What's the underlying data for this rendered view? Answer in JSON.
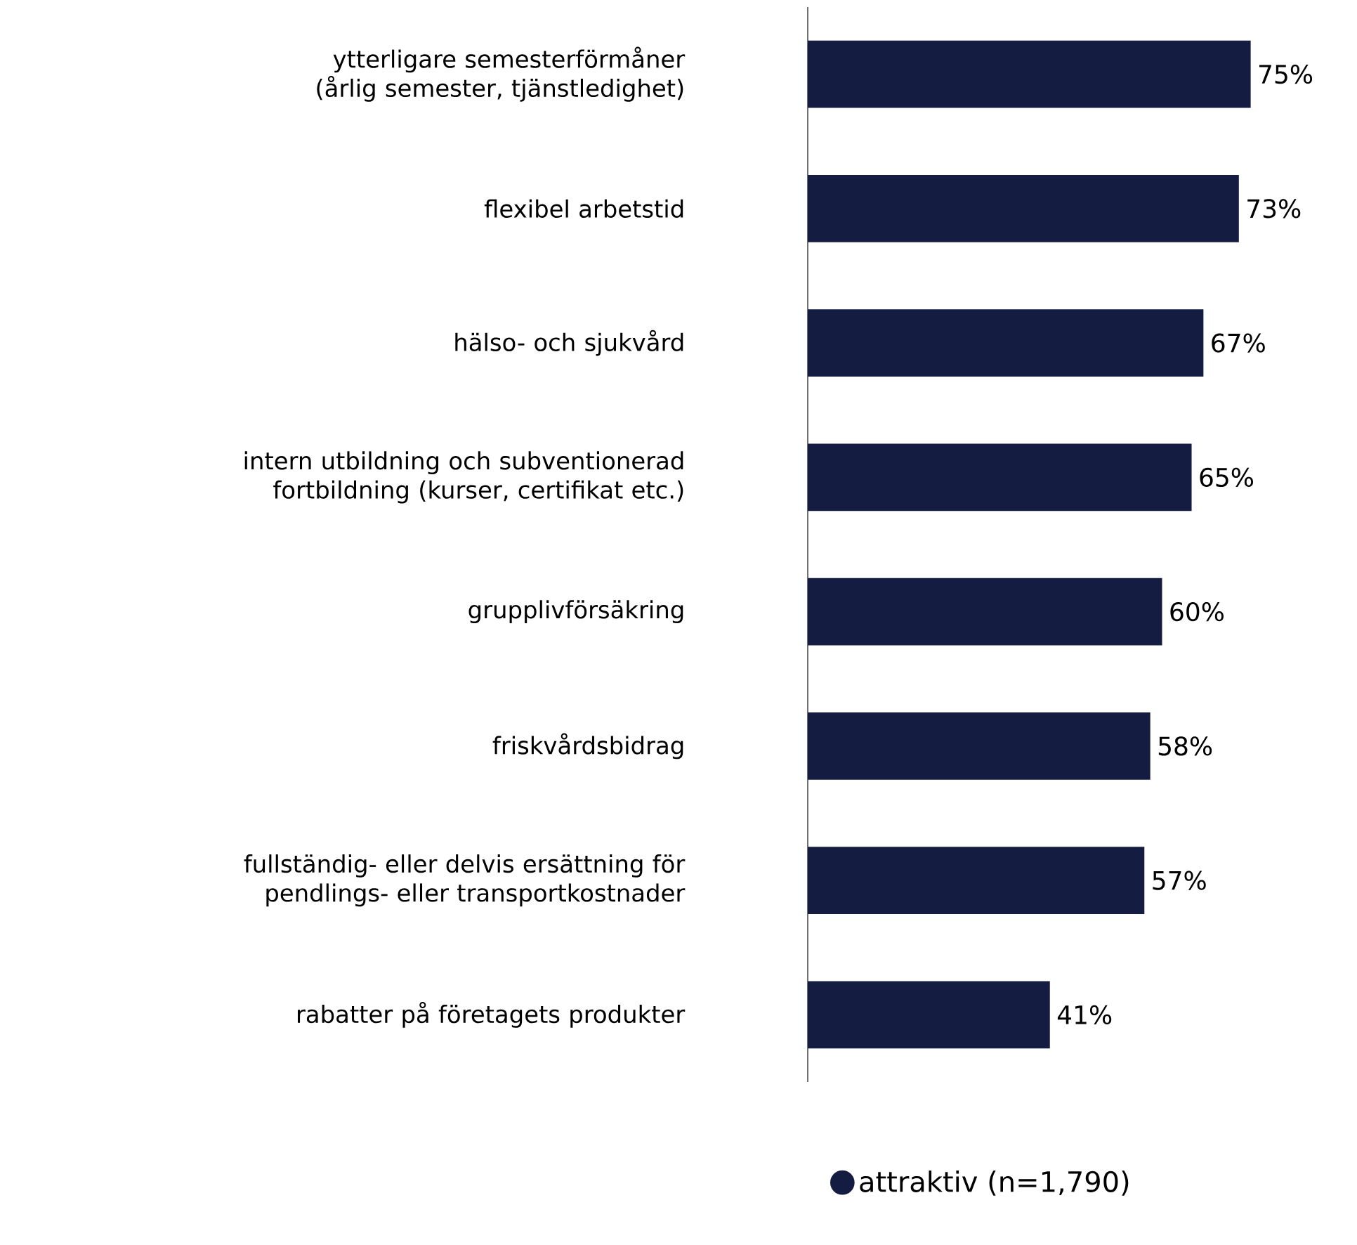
{
  "chart_data": {
    "type": "bar",
    "orientation": "horizontal",
    "categories": [
      "ytterligare semesterförmåner (årlig semester, tjänstledighet)",
      "flexibel arbetstid",
      "hälso- och sjukvård",
      "intern utbildning och subventionerad fortbildning (kurser, certifikat etc.)",
      "grupplivförsäkring",
      "friskvårdsbidrag",
      "fullständig- eller delvis ersättning för pendlings- eller transportkostnader",
      "rabatter på företagets produkter"
    ],
    "series": [
      {
        "name": "attraktiv (n=1,790)",
        "color": "#141c42",
        "values": [
          75,
          73,
          67,
          65,
          60,
          58,
          57,
          41
        ],
        "value_labels": [
          "75%",
          "73%",
          "67%",
          "65%",
          "60%",
          "58%",
          "57%",
          "41%"
        ]
      }
    ],
    "legend": "bottom"
  }
}
